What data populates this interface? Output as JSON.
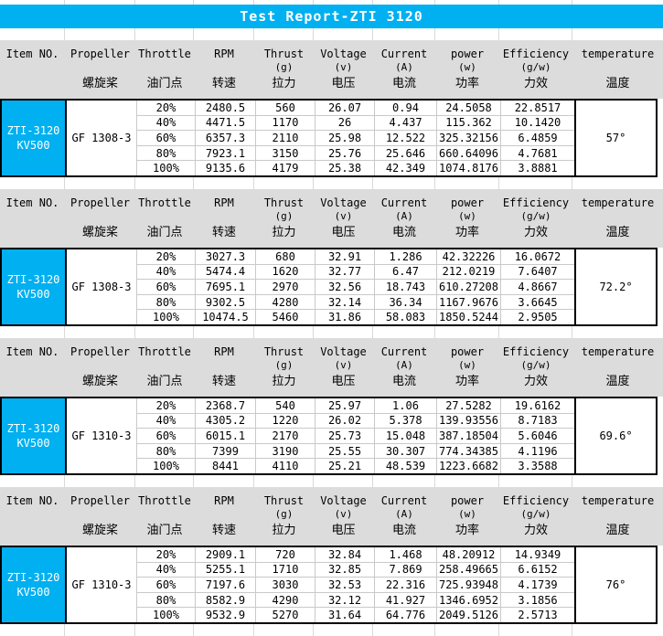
{
  "title": "Test Report-ZTI 3120",
  "colors": {
    "accent_cyan": "#00b0f0",
    "header_gray": "#dcdcdc",
    "block_border": "#000000",
    "gridline": "#c9c9c9"
  },
  "columns": [
    {
      "en": "Item NO.",
      "unit": "",
      "zh": ""
    },
    {
      "en": "Propeller",
      "unit": "",
      "zh": "螺旋桨"
    },
    {
      "en": "Throttle",
      "unit": "",
      "zh": "油门点"
    },
    {
      "en": "RPM",
      "unit": "",
      "zh": "转速"
    },
    {
      "en": "Thrust",
      "unit": "(g)",
      "zh": "拉力"
    },
    {
      "en": "Voltage",
      "unit": "(v)",
      "zh": "电压"
    },
    {
      "en": "Current",
      "unit": "(A)",
      "zh": "电流"
    },
    {
      "en": "power",
      "unit": "(w)",
      "zh": "功率"
    },
    {
      "en": "Efficiency",
      "unit": "(g/w)",
      "zh": "力效"
    },
    {
      "en": "temperature",
      "unit": "",
      "zh": "温度"
    }
  ],
  "sections": [
    {
      "item_line1": "ZTI-3120",
      "item_line2": "KV500",
      "propeller": "GF 1308-3",
      "temperature": "57°",
      "rows": [
        {
          "throttle": "20%",
          "rpm": "2480.5",
          "thrust": "560",
          "voltage": "26.07",
          "current": "0.94",
          "power": "24.5058",
          "efficiency": "22.8517"
        },
        {
          "throttle": "40%",
          "rpm": "4471.5",
          "thrust": "1170",
          "voltage": "26",
          "current": "4.437",
          "power": "115.362",
          "efficiency": "10.1420"
        },
        {
          "throttle": "60%",
          "rpm": "6357.3",
          "thrust": "2110",
          "voltage": "25.98",
          "current": "12.522",
          "power": "325.32156",
          "efficiency": "6.4859"
        },
        {
          "throttle": "80%",
          "rpm": "7923.1",
          "thrust": "3150",
          "voltage": "25.76",
          "current": "25.646",
          "power": "660.64096",
          "efficiency": "4.7681"
        },
        {
          "throttle": "100%",
          "rpm": "9135.6",
          "thrust": "4179",
          "voltage": "25.38",
          "current": "42.349",
          "power": "1074.8176",
          "efficiency": "3.8881"
        }
      ]
    },
    {
      "item_line1": "ZTI-3120",
      "item_line2": "KV500",
      "propeller": "GF 1308-3",
      "temperature": "72.2°",
      "rows": [
        {
          "throttle": "20%",
          "rpm": "3027.3",
          "thrust": "680",
          "voltage": "32.91",
          "current": "1.286",
          "power": "42.32226",
          "efficiency": "16.0672"
        },
        {
          "throttle": "40%",
          "rpm": "5474.4",
          "thrust": "1620",
          "voltage": "32.77",
          "current": "6.47",
          "power": "212.0219",
          "efficiency": "7.6407"
        },
        {
          "throttle": "60%",
          "rpm": "7695.1",
          "thrust": "2970",
          "voltage": "32.56",
          "current": "18.743",
          "power": "610.27208",
          "efficiency": "4.8667"
        },
        {
          "throttle": "80%",
          "rpm": "9302.5",
          "thrust": "4280",
          "voltage": "32.14",
          "current": "36.34",
          "power": "1167.9676",
          "efficiency": "3.6645"
        },
        {
          "throttle": "100%",
          "rpm": "10474.5",
          "thrust": "5460",
          "voltage": "31.86",
          "current": "58.083",
          "power": "1850.5244",
          "efficiency": "2.9505"
        }
      ]
    },
    {
      "item_line1": "ZTI-3120",
      "item_line2": "KV500",
      "propeller": "GF 1310-3",
      "temperature": "69.6°",
      "rows": [
        {
          "throttle": "20%",
          "rpm": "2368.7",
          "thrust": "540",
          "voltage": "25.97",
          "current": "1.06",
          "power": "27.5282",
          "efficiency": "19.6162"
        },
        {
          "throttle": "40%",
          "rpm": "4305.2",
          "thrust": "1220",
          "voltage": "26.02",
          "current": "5.378",
          "power": "139.93556",
          "efficiency": "8.7183"
        },
        {
          "throttle": "60%",
          "rpm": "6015.1",
          "thrust": "2170",
          "voltage": "25.73",
          "current": "15.048",
          "power": "387.18504",
          "efficiency": "5.6046"
        },
        {
          "throttle": "80%",
          "rpm": "7399",
          "thrust": "3190",
          "voltage": "25.55",
          "current": "30.307",
          "power": "774.34385",
          "efficiency": "4.1196"
        },
        {
          "throttle": "100%",
          "rpm": "8441",
          "thrust": "4110",
          "voltage": "25.21",
          "current": "48.539",
          "power": "1223.6682",
          "efficiency": "3.3588"
        }
      ]
    },
    {
      "item_line1": "ZTI-3120",
      "item_line2": "KV500",
      "propeller": "GF 1310-3",
      "temperature": "76°",
      "rows": [
        {
          "throttle": "20%",
          "rpm": "2909.1",
          "thrust": "720",
          "voltage": "32.84",
          "current": "1.468",
          "power": "48.20912",
          "efficiency": "14.9349"
        },
        {
          "throttle": "40%",
          "rpm": "5255.1",
          "thrust": "1710",
          "voltage": "32.85",
          "current": "7.869",
          "power": "258.49665",
          "efficiency": "6.6152"
        },
        {
          "throttle": "60%",
          "rpm": "7197.6",
          "thrust": "3030",
          "voltage": "32.53",
          "current": "22.316",
          "power": "725.93948",
          "efficiency": "4.1739"
        },
        {
          "throttle": "80%",
          "rpm": "8582.9",
          "thrust": "4290",
          "voltage": "32.12",
          "current": "41.927",
          "power": "1346.6952",
          "efficiency": "3.1856"
        },
        {
          "throttle": "100%",
          "rpm": "9532.9",
          "thrust": "5270",
          "voltage": "31.64",
          "current": "64.776",
          "power": "2049.5126",
          "efficiency": "2.5713"
        }
      ]
    }
  ]
}
